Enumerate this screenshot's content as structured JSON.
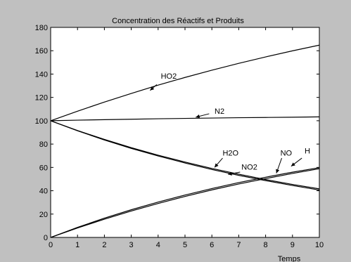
{
  "chart_data": {
    "type": "line",
    "title": "Concentration des Réactifs et Produits",
    "xlabel": "Temps",
    "ylabel": "",
    "xlim": [
      0,
      10
    ],
    "ylim": [
      0,
      180
    ],
    "grid": false,
    "x_ticks": [
      0,
      1,
      2,
      3,
      4,
      5,
      6,
      7,
      8,
      9,
      10
    ],
    "y_ticks": [
      0,
      20,
      40,
      60,
      80,
      100,
      120,
      140,
      160,
      180
    ],
    "x": [
      0,
      1,
      2,
      3,
      4,
      5,
      6,
      7,
      8,
      9,
      10
    ],
    "series": [
      {
        "name": "HO2",
        "values": [
          100,
          108.2,
          116,
          123.4,
          130.5,
          137.1,
          143.3,
          149.2,
          154.7,
          159.9,
          164.8
        ]
      },
      {
        "name": "N2",
        "values": [
          100,
          100.5,
          100.9,
          101.3,
          101.7,
          102,
          102.3,
          102.6,
          102.8,
          103,
          103.3
        ]
      },
      {
        "name": "H2O",
        "values": [
          100,
          91.6,
          84,
          76.9,
          70.5,
          64.6,
          59.1,
          54.2,
          49.6,
          45.4,
          41.6
        ]
      },
      {
        "name": "NO2",
        "values": [
          100,
          91.4,
          83.5,
          76.3,
          69.8,
          63.8,
          58.2,
          53.2,
          48.7,
          44.5,
          40.6
        ]
      },
      {
        "name": "NO",
        "values": [
          0,
          8.1,
          15.6,
          22.6,
          29.1,
          35.1,
          40.7,
          45.8,
          50.4,
          54.8,
          58.9
        ]
      },
      {
        "name": "H",
        "values": [
          0,
          8.6,
          16.5,
          23.7,
          30.3,
          36.3,
          41.9,
          47,
          51.6,
          55.9,
          59.8
        ]
      }
    ],
    "annotations": [
      {
        "label": "HO2",
        "series": "HO2",
        "text_x": 4.1,
        "text_y": 136,
        "arrow_from": [
          3.95,
          131
        ],
        "arrow_to": [
          3.7,
          126
        ]
      },
      {
        "label": "N2",
        "series": "N2",
        "text_x": 6.1,
        "text_y": 106,
        "arrow_from": [
          5.9,
          106
        ],
        "arrow_to": [
          5.4,
          103
        ]
      },
      {
        "label": "H2O",
        "series": "H2O",
        "text_x": 6.4,
        "text_y": 70,
        "arrow_from": [
          6.4,
          68
        ],
        "arrow_to": [
          6.1,
          60
        ]
      },
      {
        "label": "NO2",
        "series": "NO2",
        "text_x": 7.1,
        "text_y": 58,
        "arrow_from": [
          7.05,
          56
        ],
        "arrow_to": [
          6.6,
          54
        ]
      },
      {
        "label": "NO",
        "series": "NO",
        "text_x": 8.55,
        "text_y": 70,
        "arrow_from": [
          8.6,
          68
        ],
        "arrow_to": [
          8.4,
          55
        ]
      },
      {
        "label": "H",
        "series": "H",
        "text_x": 9.45,
        "text_y": 72,
        "arrow_from": [
          9.35,
          68
        ],
        "arrow_to": [
          8.95,
          61
        ]
      }
    ]
  }
}
